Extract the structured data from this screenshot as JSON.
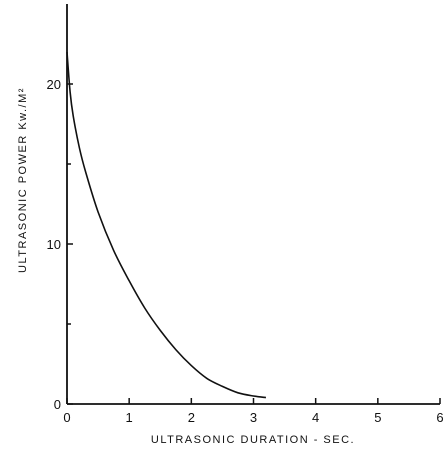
{
  "chart_data": {
    "type": "line",
    "xlabel": "ULTRASONIC DURATION - SEC.",
    "ylabel": "ULTRASONIC POWER Kw./M²",
    "xlim": [
      0,
      6
    ],
    "ylim": [
      0,
      25
    ],
    "x_ticks": [
      "0",
      "1",
      "2",
      "3",
      "4",
      "5",
      "6"
    ],
    "y_ticks": [
      "0",
      "10",
      "20"
    ],
    "grid": false,
    "series": [
      {
        "x": [
          0.0,
          0.05,
          0.1,
          0.2,
          0.3,
          0.5,
          0.75,
          1.0,
          1.25,
          1.5,
          1.75,
          2.0,
          2.25,
          2.5,
          2.75,
          3.0,
          3.2
        ],
        "y": [
          22.0,
          19.5,
          18.0,
          16.0,
          14.5,
          12.0,
          9.6,
          7.7,
          6.0,
          4.6,
          3.4,
          2.4,
          1.6,
          1.1,
          0.7,
          0.5,
          0.4
        ]
      }
    ]
  }
}
